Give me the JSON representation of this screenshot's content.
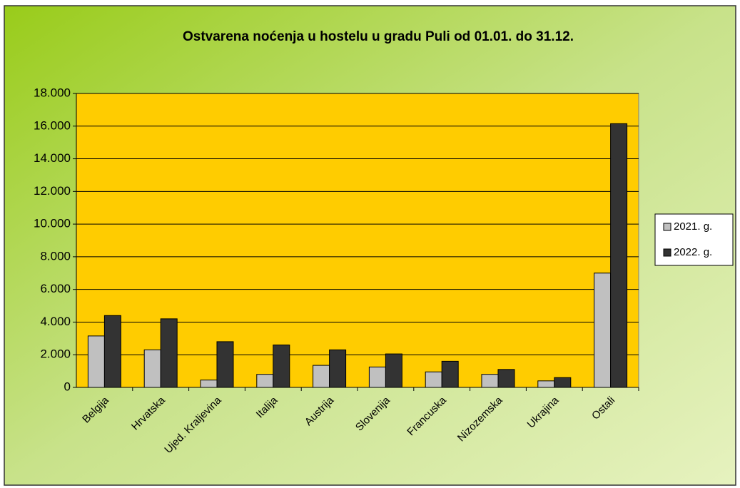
{
  "chart_data": {
    "type": "bar",
    "title": "Ostvarena noćenja u hostelu u gradu Puli od 01.01. do 31.12.",
    "categories": [
      "Belgija",
      "Hrvatska",
      "Ujed. Kraljevina",
      "Italija",
      "Austrija",
      "Slovenija",
      "Francuska",
      "Nizozemska",
      "Ukrajina",
      "Ostali"
    ],
    "series": [
      {
        "name": "2021. g.",
        "color": "#c0c0c0",
        "values": [
          3150,
          2300,
          450,
          800,
          1350,
          1250,
          950,
          800,
          400,
          7000
        ]
      },
      {
        "name": "2022. g.",
        "color": "#333333",
        "values": [
          4400,
          4200,
          2800,
          2600,
          2300,
          2050,
          1600,
          1100,
          600,
          16150
        ]
      }
    ],
    "ylim": [
      0,
      18000
    ],
    "yticks": [
      0,
      {
        "value": 2000,
        "label": "2.000"
      },
      {
        "value": 4000,
        "label": "4.000"
      },
      {
        "value": 6000,
        "label": "6.000"
      },
      {
        "value": 8000,
        "label": "8.000"
      },
      {
        "value": 10000,
        "label": "10.000"
      },
      {
        "value": 12000,
        "label": "12.000"
      },
      {
        "value": 14000,
        "label": "14.000"
      },
      {
        "value": 16000,
        "label": "16.000"
      },
      {
        "value": 18000,
        "label": "18.000"
      }
    ],
    "grid": true,
    "legend": "right",
    "plot_color": "#ffcc00"
  }
}
